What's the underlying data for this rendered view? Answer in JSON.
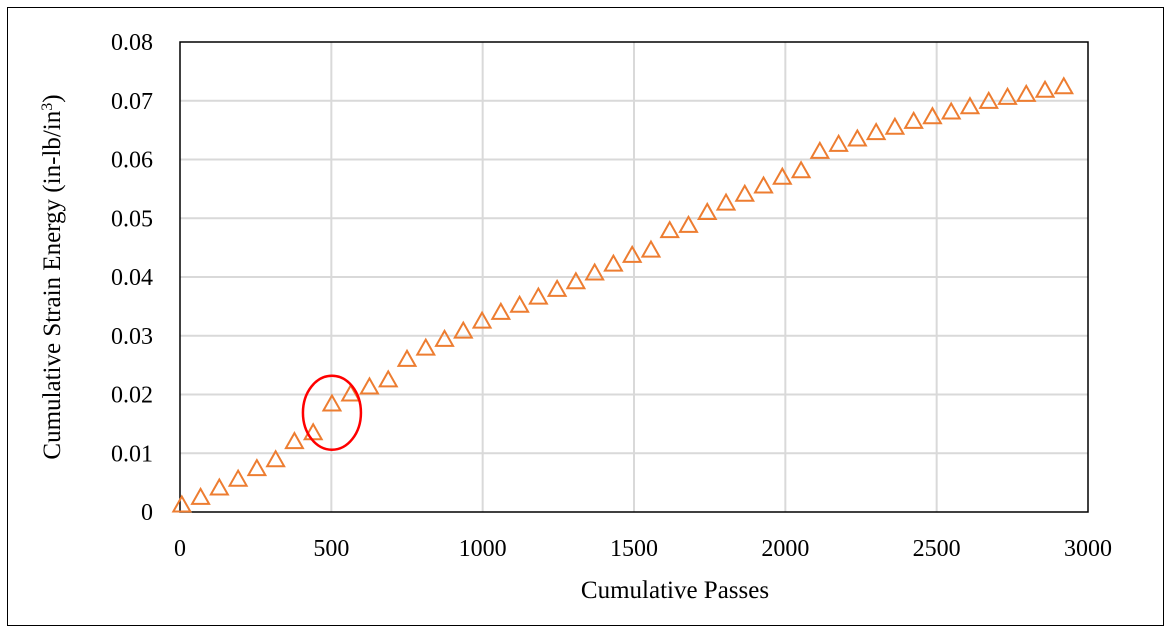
{
  "chart_data": {
    "type": "scatter",
    "title": "",
    "xlabel": "Cumulative Passes",
    "ylabel": "Cumulative Strain Energy (in-lb/in",
    "ylabel_superscript": "3",
    "ylabel_suffix": ")",
    "xlim": [
      0,
      3000
    ],
    "ylim": [
      0,
      0.08
    ],
    "grid": true,
    "x_ticks": [
      "0",
      "500",
      "1000",
      "1500",
      "2000",
      "2500",
      "3000"
    ],
    "y_ticks": [
      "0",
      "0.01",
      "0.02",
      "0.03",
      "0.04",
      "0.05",
      "0.06",
      "0.07",
      "0.08"
    ],
    "series": [
      {
        "name": "Cumulative Strain Energy",
        "marker": "triangle-open",
        "color": "#ED7D31",
        "x": [
          6,
          68,
          130,
          192,
          254,
          316,
          378,
          440,
          502,
          564,
          626,
          688,
          750,
          812,
          874,
          936,
          998,
          1060,
          1122,
          1184,
          1246,
          1308,
          1370,
          1432,
          1494,
          1556,
          1618,
          1680,
          1742,
          1804,
          1866,
          1928,
          1990,
          2052,
          2114,
          2176,
          2238,
          2300,
          2362,
          2424,
          2486,
          2548,
          2610,
          2672,
          2734,
          2796,
          2858,
          2920
        ],
        "y": [
          0.0011,
          0.0024,
          0.004,
          0.0055,
          0.0073,
          0.0088,
          0.0119,
          0.0134,
          0.0183,
          0.02,
          0.0212,
          0.0224,
          0.0259,
          0.0278,
          0.0293,
          0.0307,
          0.0324,
          0.0339,
          0.0351,
          0.0365,
          0.0378,
          0.0391,
          0.0406,
          0.0421,
          0.0436,
          0.0445,
          0.0478,
          0.0487,
          0.0509,
          0.0525,
          0.054,
          0.0554,
          0.0569,
          0.058,
          0.0613,
          0.0625,
          0.0634,
          0.0645,
          0.0654,
          0.0664,
          0.0672,
          0.068,
          0.0689,
          0.0698,
          0.0705,
          0.071,
          0.0717,
          0.0723
        ]
      }
    ],
    "annotations": [
      {
        "type": "ellipse",
        "color": "#FF0000",
        "center_x": 502,
        "center_y": 0.0169,
        "note": "highlighted point"
      }
    ],
    "colors": {
      "grid": "#D9D9D9",
      "axis": "#000000"
    }
  }
}
